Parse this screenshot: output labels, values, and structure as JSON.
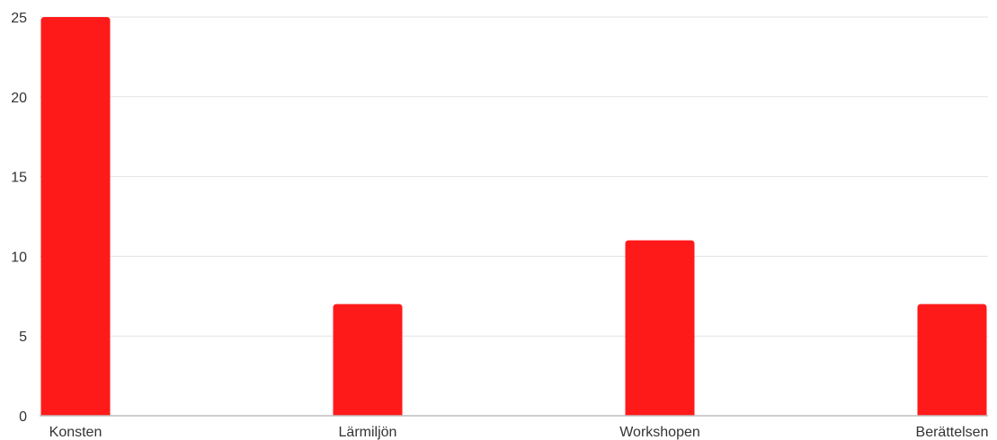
{
  "chart_data": {
    "type": "bar",
    "categories": [
      "Konsten",
      "Lärmiljön",
      "Workshopen",
      "Berättelsen"
    ],
    "values": [
      25,
      7,
      11,
      7
    ],
    "title": "",
    "xlabel": "",
    "ylabel": "",
    "ylim": [
      0,
      25
    ],
    "yticks": [
      0,
      5,
      10,
      15,
      20,
      25
    ],
    "grid": true,
    "legend": "none",
    "bar_color": "#ff1a1a"
  }
}
